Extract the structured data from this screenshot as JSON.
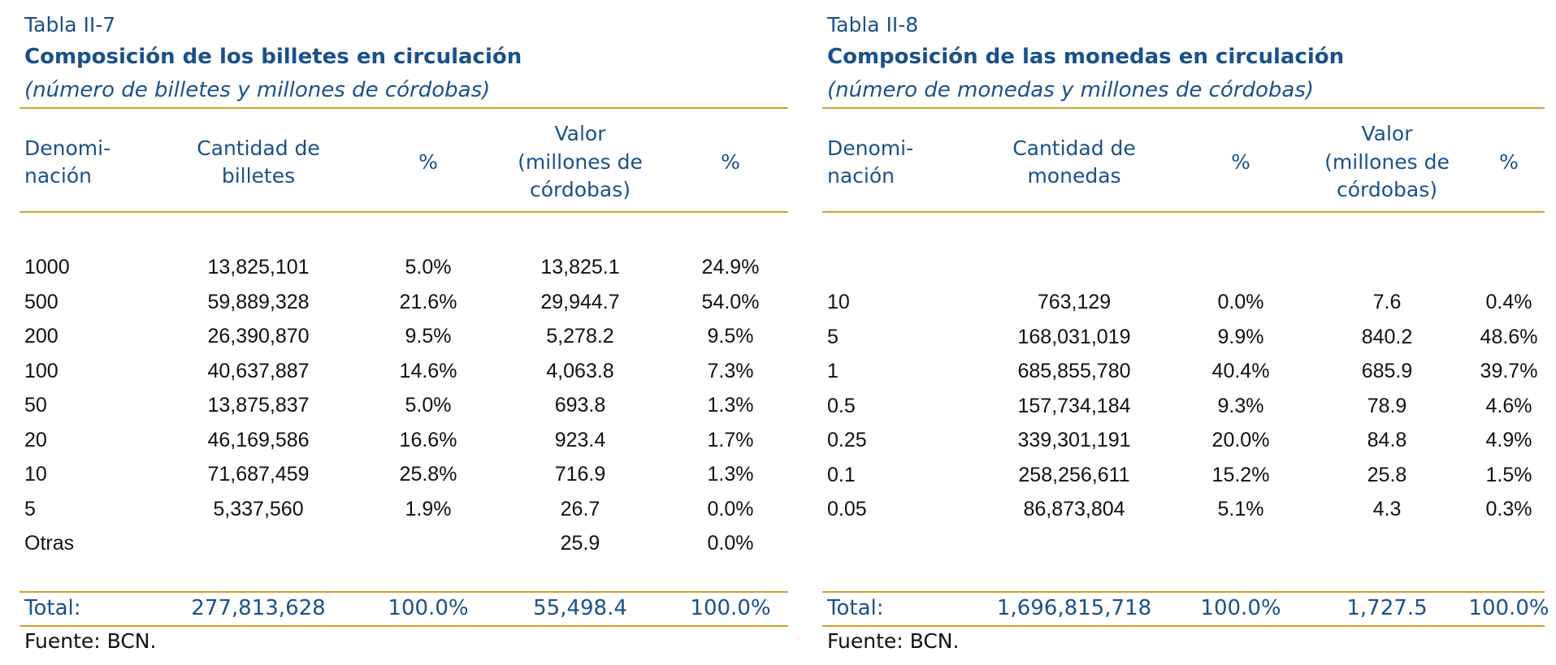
{
  "left": {
    "label": "Tabla II-7",
    "title": "Composición de los billetes en circulación",
    "subtitle": "(número de billetes y millones de córdobas)",
    "headers": [
      "Denomi-\nnación",
      "Cantidad de\nbilletes",
      "%",
      "Valor\n(millones de\ncórdobas)",
      "%"
    ],
    "rows": [
      [
        "1000",
        "13,825,101",
        "5.0%",
        "13,825.1",
        "24.9%"
      ],
      [
        "500",
        "59,889,328",
        "21.6%",
        "29,944.7",
        "54.0%"
      ],
      [
        "200",
        "26,390,870",
        "9.5%",
        "5,278.2",
        "9.5%"
      ],
      [
        "100",
        "40,637,887",
        "14.6%",
        "4,063.8",
        "7.3%"
      ],
      [
        "50",
        "13,875,837",
        "5.0%",
        "693.8",
        "1.3%"
      ],
      [
        "20",
        "46,169,586",
        "16.6%",
        "923.4",
        "1.7%"
      ],
      [
        "10",
        "71,687,459",
        "25.8%",
        "716.9",
        "1.3%"
      ],
      [
        "5",
        "5,337,560",
        "1.9%",
        "26.7",
        "0.0%"
      ],
      [
        "Otras",
        "",
        "",
        "25.9",
        "0.0%"
      ]
    ],
    "total": [
      "Total:",
      "277,813,628",
      "100.0%",
      "55,498.4",
      "100.0%"
    ],
    "source": "Fuente: BCN."
  },
  "right": {
    "label": "Tabla II-8",
    "title": "Composición de las monedas en circulación",
    "subtitle": "(número de monedas y millones de córdobas)",
    "headers": [
      "Denomi-\nnación",
      "Cantidad de\nmonedas",
      "%",
      "Valor\n(millones de\ncórdobas)",
      "%"
    ],
    "rows": [
      [
        "10",
        "763,129",
        "0.0%",
        "7.6",
        "0.4%"
      ],
      [
        "5",
        "168,031,019",
        "9.9%",
        "840.2",
        "48.6%"
      ],
      [
        "1",
        "685,855,780",
        "40.4%",
        "685.9",
        "39.7%"
      ],
      [
        "0.5",
        "157,734,184",
        "9.3%",
        "78.9",
        "4.6%"
      ],
      [
        "0.25",
        "339,301,191",
        "20.0%",
        "84.8",
        "4.9%"
      ],
      [
        "0.1",
        "258,256,611",
        "15.2%",
        "25.8",
        "1.5%"
      ],
      [
        "0.05",
        "86,873,804",
        "5.1%",
        "4.3",
        "0.3%"
      ]
    ],
    "total": [
      "Total:",
      "1,696,815,718",
      "100.0%",
      "1,727.5",
      "100.0%"
    ],
    "source": "Fuente: BCN."
  }
}
